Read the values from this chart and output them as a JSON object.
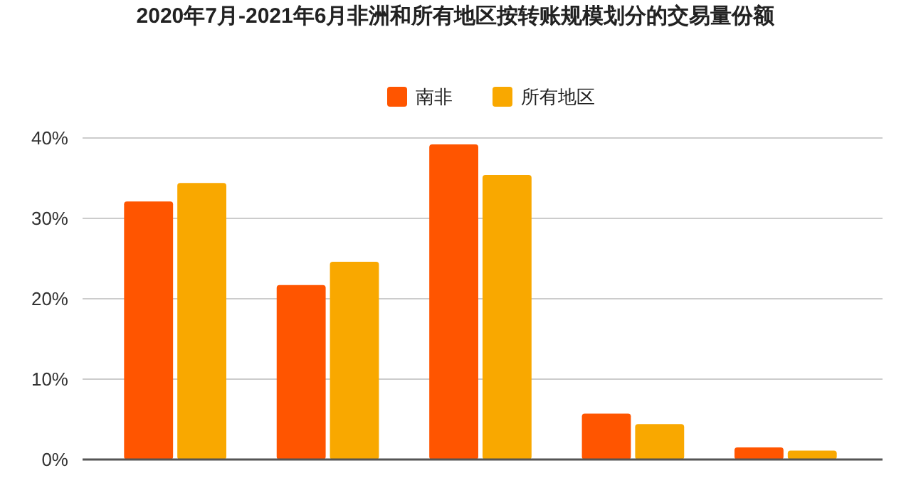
{
  "chart_data": {
    "type": "bar",
    "title": "2020年7月-2021年6月非洲和所有地区按转账规模划分的交易量份额",
    "categories": [
      null,
      null,
      null,
      null,
      null
    ],
    "series": [
      {
        "name": "南非",
        "color": "#ff5500",
        "values": [
          32.1,
          21.7,
          39.2,
          5.7,
          1.5
        ]
      },
      {
        "name": "所有地区",
        "color": "#f9a800",
        "values": [
          34.4,
          24.6,
          35.4,
          4.4,
          1.1
        ]
      }
    ],
    "ylim": [
      0,
      40
    ],
    "yticks": [
      {
        "value": 0,
        "label": "0%"
      },
      {
        "value": 10,
        "label": "10%"
      },
      {
        "value": 20,
        "label": "20%"
      },
      {
        "value": 30,
        "label": "30%"
      },
      {
        "value": 40,
        "label": "40%"
      }
    ],
    "grid": "y",
    "legend": "top"
  }
}
